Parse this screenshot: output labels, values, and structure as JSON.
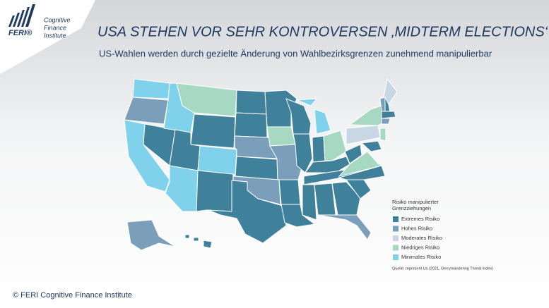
{
  "logo": {
    "brand": "FERI®",
    "lines": [
      "Cognitive",
      "Finance",
      "Institute"
    ]
  },
  "title": "USA STEHEN VOR SEHR KONTROVERSEN ‚MIDTERM ELECTIONS‘",
  "subtitle": "US-Wahlen werden durch gezielte Änderung von Wahlbezirksgrenzen zunehmend manipulierbar",
  "legend": {
    "title_lines": [
      "Risiko manipulierter",
      "Grenzziehungen"
    ],
    "items": [
      {
        "label": "Extremes Risiko",
        "color": "#3f809b"
      },
      {
        "label": "Hohes Risiko",
        "color": "#7b9fba"
      },
      {
        "label": "Moderates Risiko",
        "color": "#c9d7e4"
      },
      {
        "label": "Niedriges Risiko",
        "color": "#a7d9c2"
      },
      {
        "label": "Minimales Risiko",
        "color": "#80d1ec"
      }
    ]
  },
  "source": "Quelle: represent Us (2021, Gerrymandering Threat Index)",
  "copyright": "© FERI Cognitive Finance Institute"
}
